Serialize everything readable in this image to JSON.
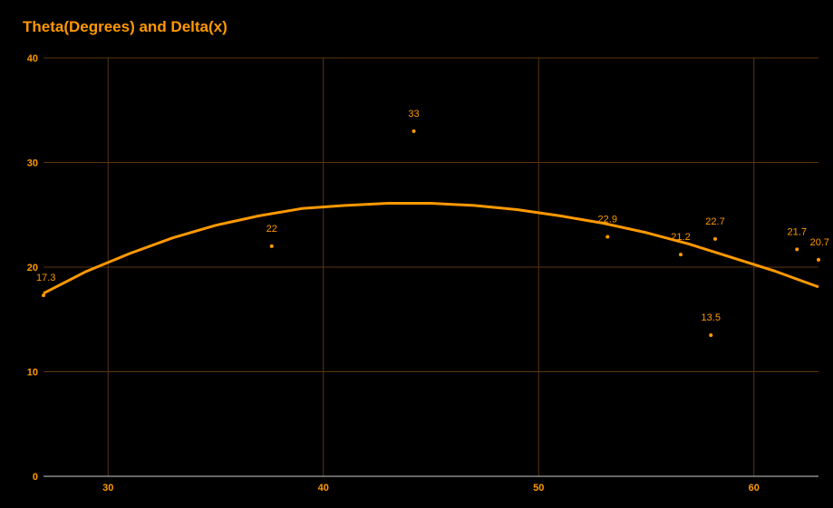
{
  "chart_data": {
    "type": "scatter",
    "title": "Theta(Degrees) and Delta(x)",
    "xlabel": "",
    "ylabel": "",
    "xlim": [
      27,
      63
    ],
    "ylim": [
      0,
      40
    ],
    "x_ticks": [
      "30",
      "40",
      "50",
      "60"
    ],
    "y_ticks": [
      "0",
      "10",
      "20",
      "30",
      "40"
    ],
    "grid": true,
    "legend": "none",
    "colors": {
      "accent": "#FF9900",
      "grid": "#5a3510",
      "axis": "#cccccc",
      "background": "#000000"
    },
    "series": [
      {
        "x": [
          27.0,
          37.6,
          44.2,
          53.2,
          56.6,
          58.0,
          58.2,
          62.0,
          63.0
        ],
        "y": [
          17.3,
          22.0,
          33.0,
          22.9,
          21.2,
          13.5,
          22.7,
          21.7,
          20.7
        ],
        "labels": [
          "17.3",
          "22",
          "33",
          "22.9",
          "21.2",
          "13.5",
          "22.7",
          "21.7",
          "20.7"
        ]
      }
    ],
    "trendline": {
      "type": "polynomial",
      "degree": 2,
      "x": [
        27,
        29,
        31,
        33,
        35,
        37,
        39,
        41,
        43,
        45,
        47,
        49,
        51,
        53,
        55,
        57,
        59,
        61,
        63
      ],
      "y": [
        17.5,
        19.6,
        21.3,
        22.8,
        24.0,
        24.9,
        25.6,
        25.9,
        26.1,
        26.1,
        25.9,
        25.5,
        24.9,
        24.2,
        23.3,
        22.2,
        20.9,
        19.6,
        18.1
      ]
    }
  }
}
